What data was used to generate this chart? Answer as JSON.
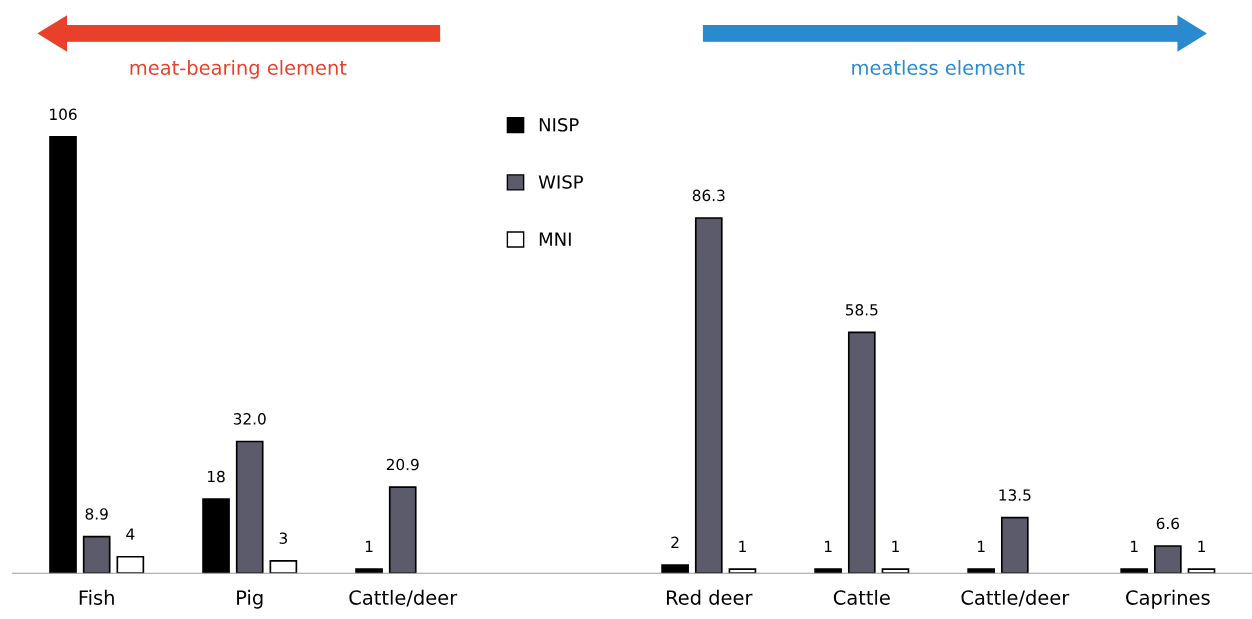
{
  "chart_data": {
    "type": "bar",
    "categories": [
      "Fish",
      "Pig",
      "Cattle/deer",
      null,
      "Red deer",
      "Cattle",
      "Cattle/deer",
      "Caprines"
    ],
    "series": [
      {
        "name": "NISP",
        "color": "#000000",
        "values": [
          106,
          18,
          1,
          null,
          2,
          1,
          1,
          1
        ],
        "value_labels": [
          "106",
          "18",
          "1",
          null,
          "2",
          "1",
          "1",
          "1"
        ]
      },
      {
        "name": "WISP",
        "color": "#5b5b6b",
        "values": [
          8.9,
          32.0,
          20.9,
          null,
          86.3,
          58.5,
          13.5,
          6.6
        ],
        "value_labels": [
          "8.9",
          "32.0",
          "20.9",
          null,
          "86.3",
          "58.5",
          "13.5",
          "6.6"
        ]
      },
      {
        "name": "MNI",
        "color": "#ffffff",
        "values": [
          4,
          3,
          null,
          null,
          1,
          1,
          null,
          1
        ],
        "value_labels": [
          "4",
          "3",
          null,
          null,
          "1",
          "1",
          null,
          "1"
        ]
      }
    ],
    "legend": "top",
    "grid": false,
    "annotations": [
      "meat-bearing element",
      "meatless element"
    ]
  }
}
